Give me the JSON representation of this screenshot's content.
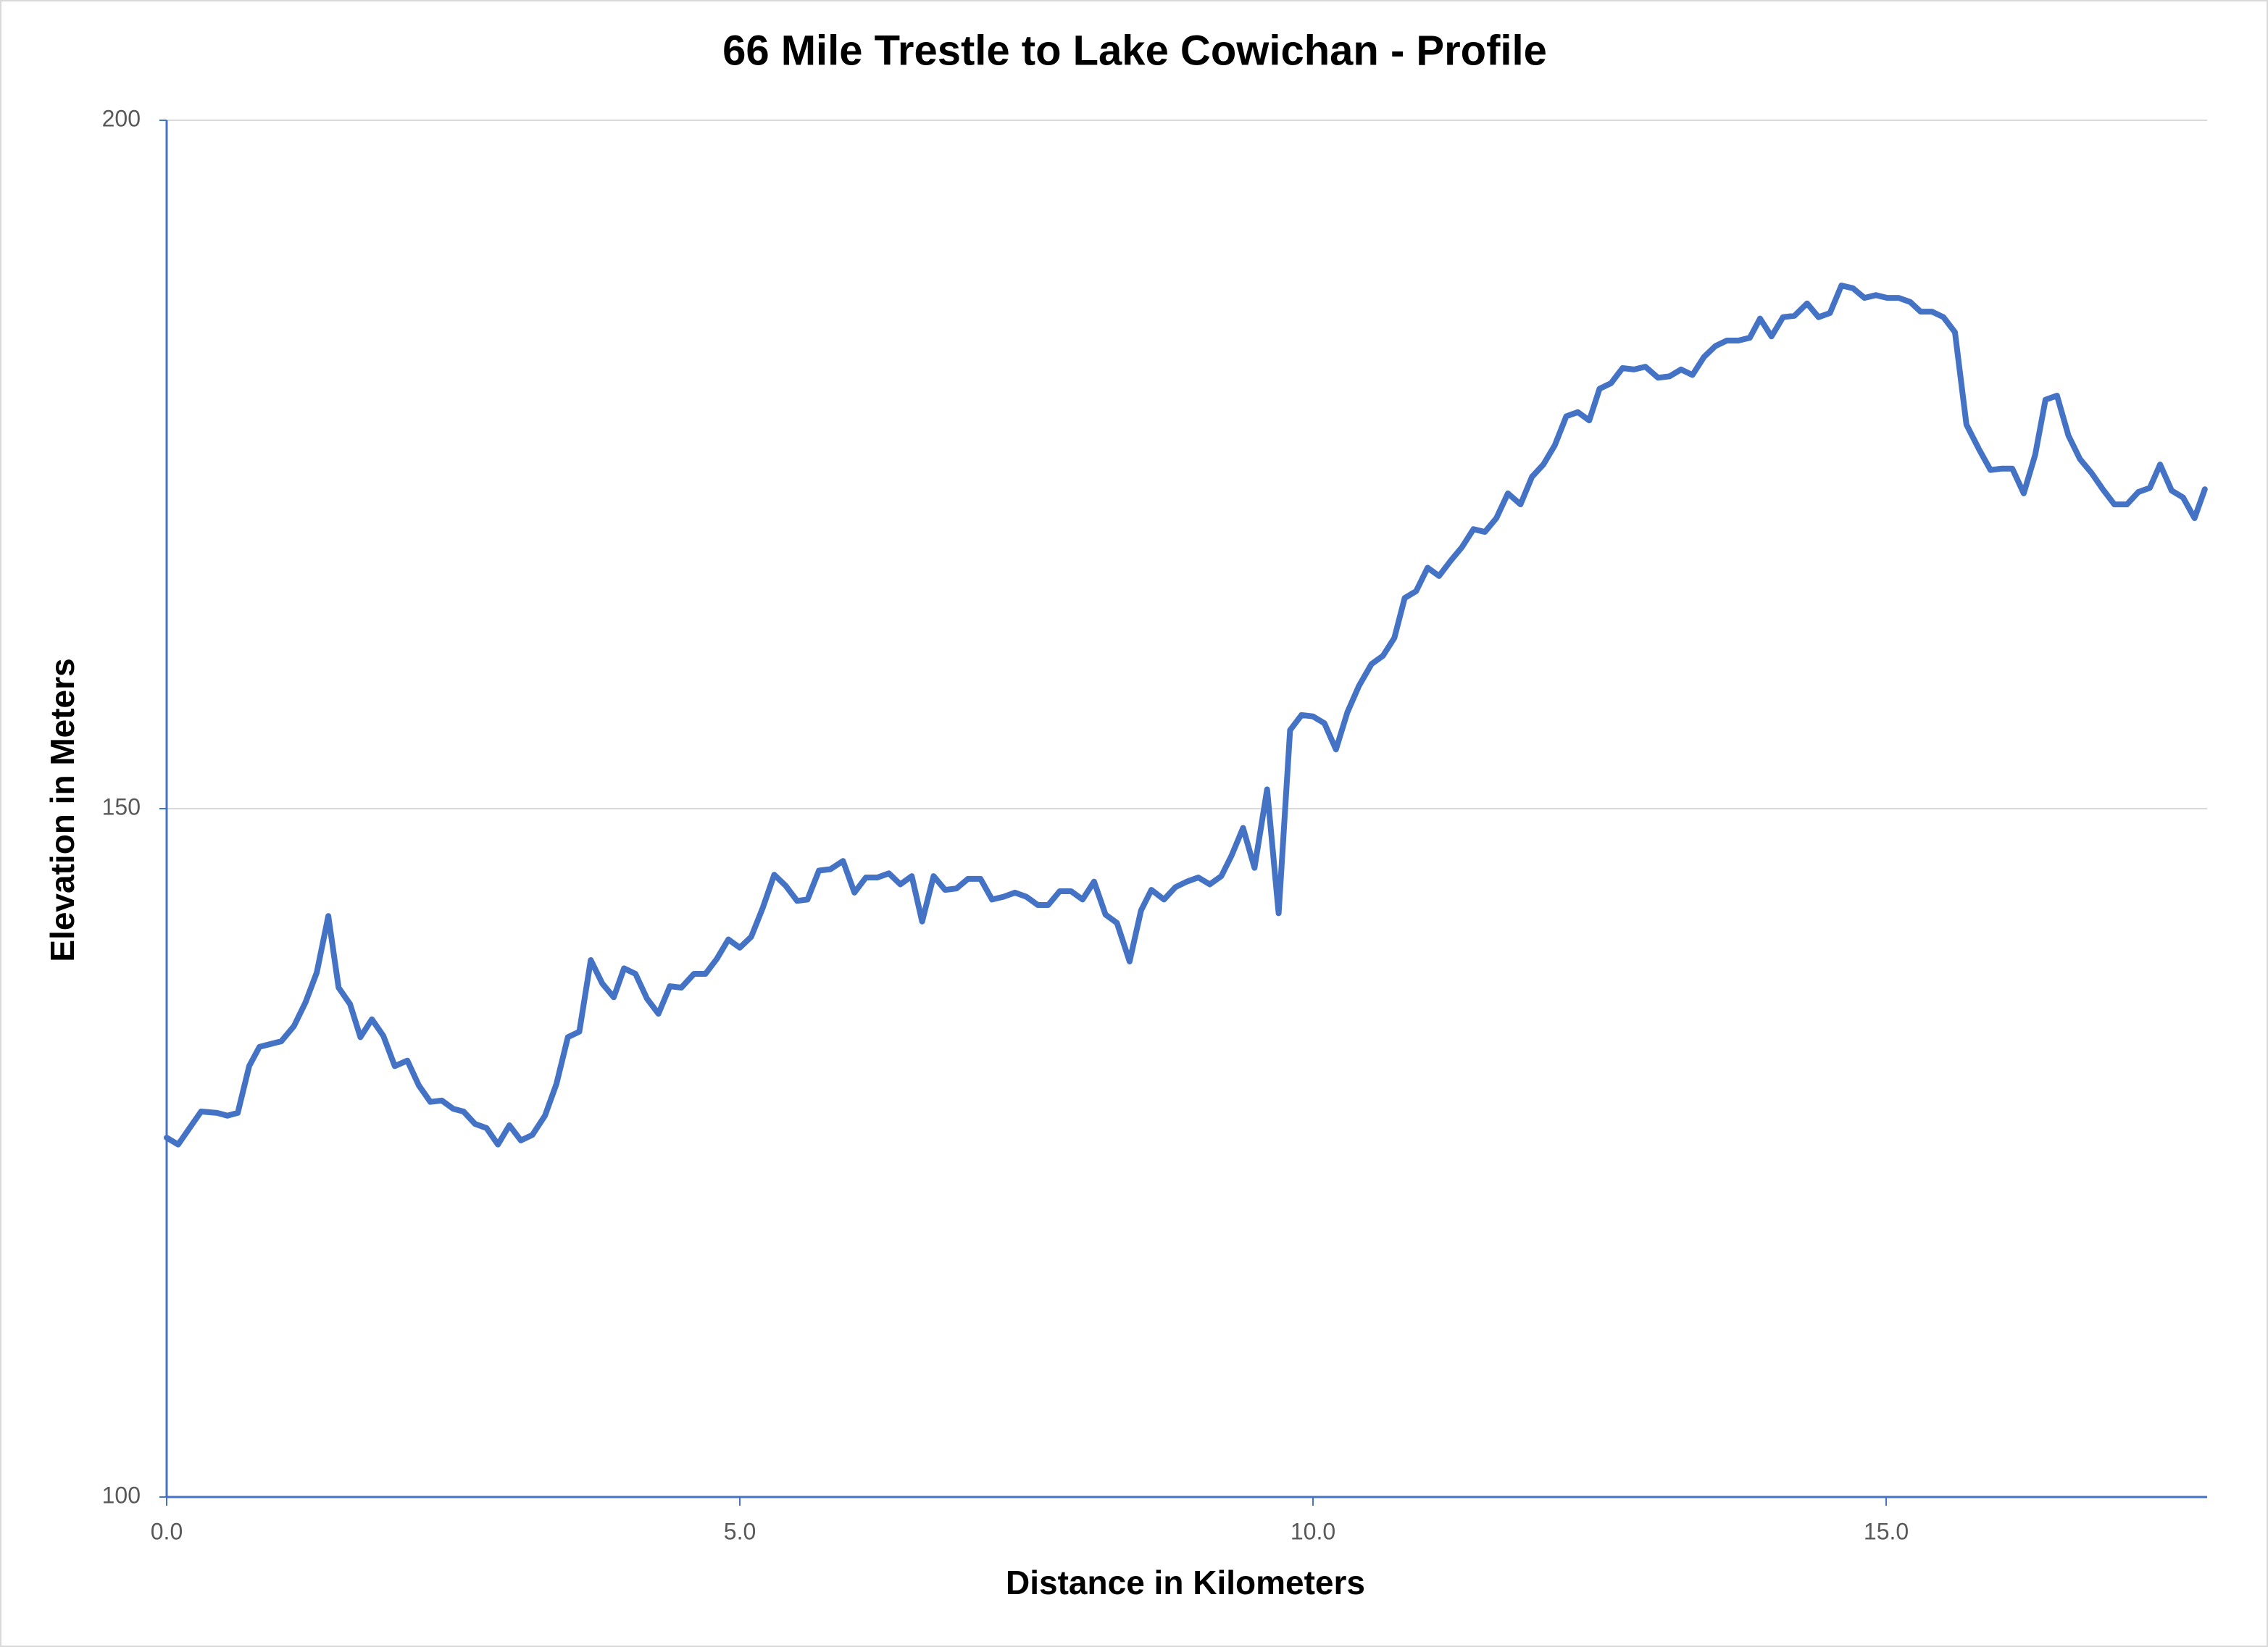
{
  "chart_data": {
    "type": "line",
    "title": "66 Mile Trestle to Lake Cowichan - Profile",
    "x_label": "Distance in Kilometers",
    "y_label": "Elevation in Meters",
    "xlim": [
      0,
      17.8
    ],
    "ylim": [
      100,
      200
    ],
    "xticks": [
      {
        "value": 0,
        "label": "0.0"
      },
      {
        "value": 5,
        "label": "5.0"
      },
      {
        "value": 10,
        "label": "10.0"
      },
      {
        "value": 15,
        "label": "15.0"
      }
    ],
    "yticks": [
      100,
      150,
      200
    ],
    "grid": true,
    "x": [
      0,
      0.1,
      0.3,
      0.44,
      0.53,
      0.62,
      0.72,
      0.81,
      1.0,
      1.11,
      1.21,
      1.31,
      1.41,
      1.5,
      1.6,
      1.69,
      1.79,
      1.89,
      1.99,
      2.1,
      2.2,
      2.3,
      2.4,
      2.5,
      2.59,
      2.69,
      2.79,
      2.89,
      2.99,
      3.09,
      3.19,
      3.3,
      3.4,
      3.5,
      3.6,
      3.7,
      3.8,
      3.9,
      3.99,
      4.09,
      4.19,
      4.29,
      4.39,
      4.49,
      4.6,
      4.7,
      4.8,
      4.9,
      5.0,
      5.1,
      5.2,
      5.3,
      5.4,
      5.5,
      5.59,
      5.69,
      5.79,
      5.9,
      6.0,
      6.1,
      6.2,
      6.3,
      6.4,
      6.5,
      6.59,
      6.69,
      6.79,
      6.89,
      6.99,
      7.1,
      7.2,
      7.3,
      7.4,
      7.5,
      7.6,
      7.69,
      7.79,
      7.89,
      7.99,
      8.09,
      8.19,
      8.29,
      8.4,
      8.5,
      8.59,
      8.7,
      8.8,
      8.9,
      9.0,
      9.1,
      9.2,
      9.29,
      9.39,
      9.49,
      9.6,
      9.7,
      9.8,
      9.9,
      10.0,
      10.1,
      10.2,
      10.3,
      10.4,
      10.51,
      10.61,
      10.71,
      10.8,
      10.9,
      11.0,
      11.1,
      11.2,
      11.3,
      11.4,
      11.5,
      11.6,
      11.7,
      11.81,
      11.91,
      12.01,
      12.11,
      12.21,
      12.31,
      12.41,
      12.5,
      12.6,
      12.7,
      12.8,
      12.9,
      13.01,
      13.11,
      13.21,
      13.31,
      13.41,
      13.51,
      13.61,
      13.71,
      13.81,
      13.9,
      14.0,
      14.1,
      14.2,
      14.31,
      14.41,
      14.51,
      14.61,
      14.71,
      14.81,
      14.91,
      15.01,
      15.11,
      15.21,
      15.3,
      15.4,
      15.5,
      15.6,
      15.7,
      15.81,
      15.91,
      16.01,
      16.1,
      16.2,
      16.3,
      16.39,
      16.49,
      16.59,
      16.69,
      16.79,
      16.89,
      16.99,
      17.1,
      17.2,
      17.3,
      17.39,
      17.49,
      17.59,
      17.69,
      17.78
    ],
    "series": [
      {
        "name": "Elevation",
        "color": "#4472c4",
        "values": [
          126.1,
          125.6,
          128.0,
          127.9,
          127.7,
          127.9,
          131.3,
          132.7,
          133.1,
          134.2,
          135.9,
          138.1,
          142.2,
          137.0,
          135.8,
          133.4,
          134.7,
          133.5,
          131.3,
          131.7,
          129.9,
          128.7,
          128.8,
          128.2,
          128.0,
          127.1,
          126.8,
          125.6,
          127.0,
          125.9,
          126.3,
          127.7,
          130.0,
          133.4,
          133.8,
          139.0,
          137.3,
          136.3,
          138.4,
          138.0,
          136.2,
          135.1,
          137.1,
          137.0,
          138.0,
          138.0,
          139.1,
          140.5,
          139.9,
          140.7,
          142.8,
          145.2,
          144.4,
          143.3,
          143.4,
          145.5,
          145.6,
          146.2,
          143.9,
          145.0,
          145.0,
          145.3,
          144.5,
          145.1,
          141.8,
          145.1,
          144.1,
          144.2,
          144.9,
          144.9,
          143.4,
          143.6,
          143.9,
          143.6,
          143.0,
          143.0,
          144.0,
          144.0,
          143.4,
          144.7,
          142.3,
          141.7,
          138.9,
          142.6,
          144.1,
          143.4,
          144.3,
          144.7,
          145.0,
          144.5,
          145.1,
          146.6,
          148.6,
          145.7,
          151.4,
          142.4,
          155.7,
          156.8,
          156.7,
          156.2,
          154.3,
          157.0,
          158.9,
          160.5,
          161.1,
          162.4,
          165.3,
          165.8,
          167.5,
          166.9,
          168.0,
          169.0,
          170.3,
          170.1,
          171.1,
          172.9,
          172.1,
          174.1,
          175.0,
          176.4,
          178.5,
          178.8,
          178.2,
          180.5,
          180.9,
          182.0,
          181.9,
          182.1,
          181.3,
          181.4,
          181.9,
          181.5,
          182.8,
          183.6,
          184.0,
          184.0,
          184.2,
          185.6,
          184.3,
          185.7,
          185.8,
          186.7,
          185.7,
          186.0,
          188.0,
          187.8,
          187.1,
          187.3,
          187.1,
          187.1,
          186.8,
          186.1,
          186.1,
          185.7,
          184.6,
          177.9,
          176.1,
          174.6,
          174.7,
          174.7,
          172.9,
          175.7,
          179.7,
          180.0,
          177.1,
          175.4,
          174.4,
          173.2,
          172.1,
          172.1,
          173.0,
          173.3,
          175.0,
          173.1,
          172.6,
          171.1,
          173.2
        ]
      }
    ]
  }
}
